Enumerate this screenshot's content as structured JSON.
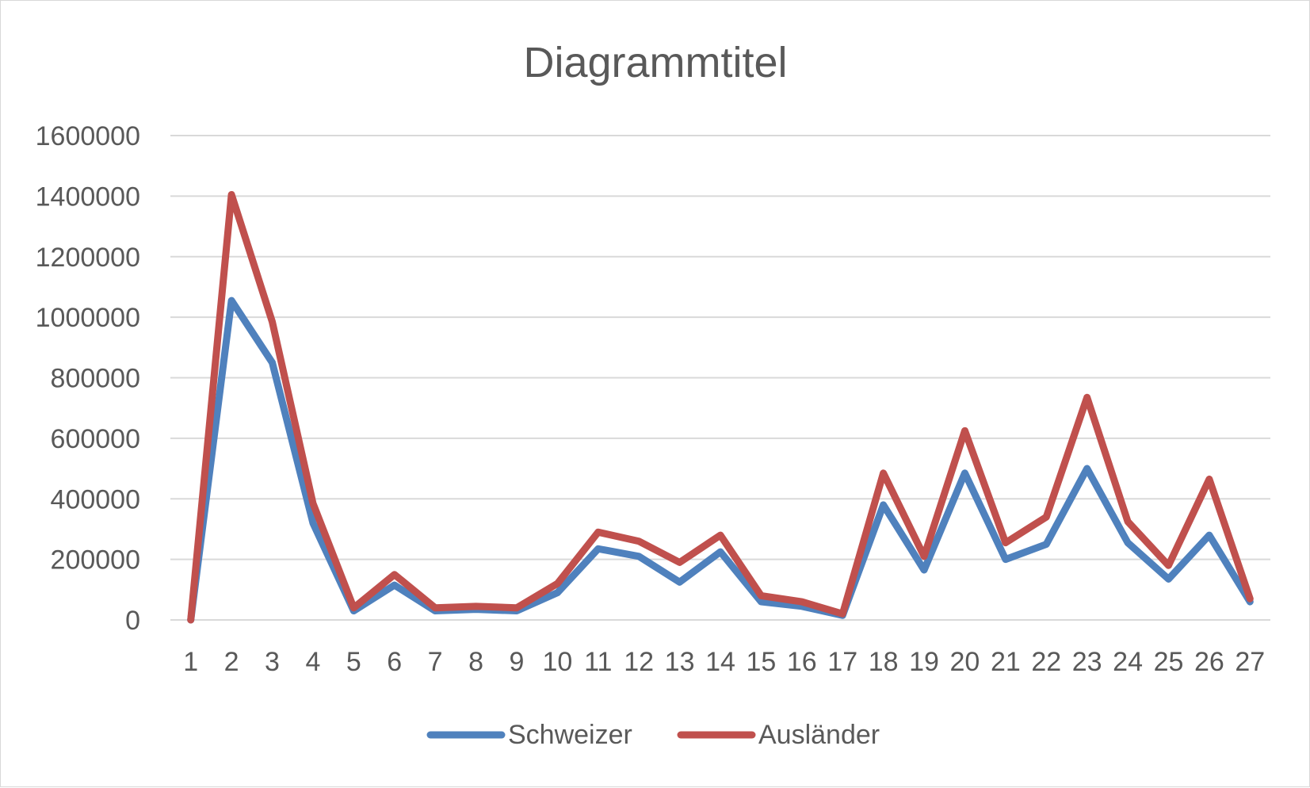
{
  "chart_data": {
    "type": "line",
    "title": "Diagrammtitel",
    "xlabel": "",
    "ylabel": "",
    "categories": [
      "1",
      "2",
      "3",
      "4",
      "5",
      "6",
      "7",
      "8",
      "9",
      "10",
      "11",
      "12",
      "13",
      "14",
      "15",
      "16",
      "17",
      "18",
      "19",
      "20",
      "21",
      "22",
      "23",
      "24",
      "25",
      "26",
      "27"
    ],
    "ylim": [
      0,
      1600000
    ],
    "yticks": [
      "0",
      "200000",
      "400000",
      "600000",
      "800000",
      "1000000",
      "1200000",
      "1400000",
      "1600000"
    ],
    "grid": true,
    "legend_position": "bottom",
    "series": [
      {
        "name": "Schweizer",
        "color": "#4f81bd",
        "values": [
          0,
          1055000,
          850000,
          320000,
          30000,
          115000,
          30000,
          35000,
          30000,
          90000,
          235000,
          210000,
          125000,
          225000,
          60000,
          45000,
          15000,
          380000,
          165000,
          485000,
          200000,
          250000,
          500000,
          255000,
          135000,
          280000,
          60000
        ]
      },
      {
        "name": "Ausländer",
        "color": "#c0504d",
        "values": [
          0,
          1405000,
          985000,
          385000,
          40000,
          150000,
          40000,
          45000,
          40000,
          120000,
          290000,
          260000,
          190000,
          280000,
          80000,
          60000,
          20000,
          485000,
          210000,
          625000,
          255000,
          340000,
          735000,
          325000,
          180000,
          465000,
          70000
        ]
      }
    ]
  }
}
